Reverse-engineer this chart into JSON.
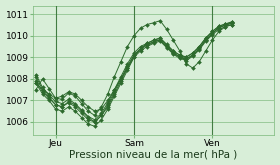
{
  "bg_color": "#d8eed8",
  "grid_color": "#7ab87a",
  "line_color": "#2d6a2d",
  "marker_color": "#2d6a2d",
  "xlabel": "Pression niveau de la mer( hPa )",
  "xlabel_fontsize": 7.5,
  "ylabel_fontsize": 6.5,
  "yticks": [
    1006,
    1007,
    1008,
    1009,
    1010,
    1011
  ],
  "ylim": [
    1005.4,
    1011.4
  ],
  "xlim": [
    -1,
    73
  ],
  "xtick_positions": [
    6,
    30,
    54
  ],
  "xtick_labels": [
    "Jeu",
    "Sam",
    "Ven"
  ],
  "vlines": [
    6,
    30,
    54
  ],
  "series": [
    [
      1007.8,
      1007.5,
      1007.3,
      1007.1,
      1007.2,
      1007.4,
      1007.3,
      1007.0,
      1006.7,
      1006.5,
      1006.6,
      1007.0,
      1007.5,
      1008.0,
      1008.5,
      1009.0,
      1009.4,
      1009.65,
      1009.8,
      1009.9,
      1009.6,
      1009.3,
      1009.1,
      1009.0,
      1009.2,
      1009.5,
      1009.9,
      1010.2,
      1010.45,
      1010.55,
      1010.65
    ],
    [
      1007.9,
      1007.4,
      1007.1,
      1006.8,
      1006.7,
      1006.9,
      1006.7,
      1006.4,
      1006.1,
      1006.0,
      1006.3,
      1006.7,
      1007.3,
      1007.9,
      1008.5,
      1009.1,
      1009.4,
      1009.55,
      1009.7,
      1009.8,
      1009.5,
      1009.2,
      1009.0,
      1008.9,
      1009.1,
      1009.4,
      1009.8,
      1010.1,
      1010.38,
      1010.5,
      1010.6
    ],
    [
      1008.2,
      1007.6,
      1007.25,
      1006.95,
      1006.85,
      1007.05,
      1006.85,
      1006.55,
      1006.25,
      1006.1,
      1006.4,
      1006.9,
      1007.5,
      1008.1,
      1008.7,
      1009.2,
      1009.5,
      1009.65,
      1009.78,
      1009.88,
      1009.58,
      1009.28,
      1009.1,
      1009.02,
      1009.2,
      1009.5,
      1009.9,
      1010.2,
      1010.43,
      1010.54,
      1010.62
    ],
    [
      1007.8,
      1007.3,
      1007.0,
      1006.6,
      1006.5,
      1006.7,
      1006.5,
      1006.2,
      1005.9,
      1005.8,
      1006.1,
      1006.6,
      1007.2,
      1007.8,
      1008.4,
      1009.0,
      1009.3,
      1009.5,
      1009.65,
      1009.75,
      1009.45,
      1009.15,
      1008.95,
      1008.85,
      1009.05,
      1009.35,
      1009.75,
      1010.05,
      1010.3,
      1010.42,
      1010.52
    ],
    [
      1007.5,
      1008.0,
      1007.55,
      1007.1,
      1007.05,
      1007.35,
      1007.2,
      1006.85,
      1006.5,
      1006.3,
      1006.7,
      1007.3,
      1008.1,
      1008.8,
      1009.5,
      1010.0,
      1010.35,
      1010.52,
      1010.6,
      1010.7,
      1010.3,
      1009.8,
      1009.3,
      1008.7,
      1008.5,
      1008.8,
      1009.3,
      1009.8,
      1010.2,
      1010.42,
      1010.52
    ],
    [
      1008.1,
      1007.5,
      1007.15,
      1006.8,
      1006.7,
      1006.95,
      1006.8,
      1006.5,
      1006.2,
      1006.0,
      1006.3,
      1006.8,
      1007.4,
      1008.0,
      1008.6,
      1009.1,
      1009.4,
      1009.6,
      1009.72,
      1009.82,
      1009.52,
      1009.22,
      1009.02,
      1008.92,
      1009.12,
      1009.42,
      1009.82,
      1010.12,
      1010.37,
      1010.48,
      1010.58
    ]
  ],
  "x_values": [
    0,
    2,
    4,
    6,
    8,
    10,
    12,
    14,
    16,
    18,
    20,
    22,
    24,
    26,
    28,
    30,
    32,
    34,
    36,
    38,
    40,
    42,
    44,
    46,
    48,
    50,
    52,
    54,
    56,
    58,
    60
  ]
}
